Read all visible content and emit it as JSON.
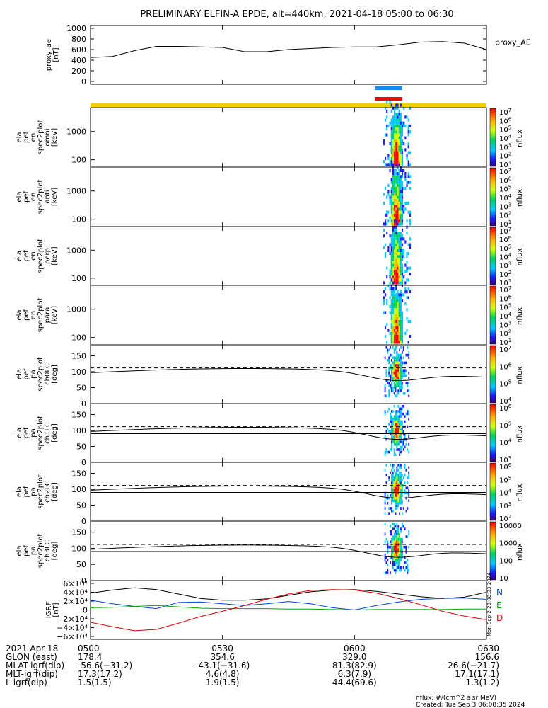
{
  "title": "PRELIMINARY ELFIN-A EPDE, alt=440km, 2021-04-18 05:00 to 06:30",
  "colors": {
    "blue_bar": "#1e88e5",
    "red_bar": "#d11",
    "yellow_bar": "#f5d000",
    "black": "#000",
    "bx": "#0044dd",
    "by": "#00aa00",
    "bz": "#dd0000"
  },
  "chart_data": [
    {
      "type": "line",
      "ylabel": "proxy_ae\n[nT]",
      "legend": "proxy_AE",
      "ylim": [
        0,
        1000
      ],
      "yticks": [
        "1000",
        "800",
        "600",
        "400",
        "200",
        "0"
      ],
      "x_minutes": [
        0,
        5,
        10,
        15,
        20,
        25,
        30,
        35,
        40,
        45,
        50,
        55,
        60,
        65,
        70,
        75,
        80,
        85,
        90
      ],
      "values": [
        450,
        470,
        580,
        660,
        660,
        650,
        640,
        560,
        560,
        600,
        620,
        640,
        650,
        650,
        690,
        740,
        750,
        720,
        600
      ]
    },
    {
      "type": "heatmap",
      "ylabel": "ela\npef\nen\nspec2plot\nomni\n[keV]",
      "yticks": [
        "1000",
        "100"
      ],
      "colorbar": [
        "10^7",
        "10^6",
        "10^5",
        "10^4",
        "10^3",
        "10^2",
        "10^1"
      ],
      "cblabel": "nflux"
    },
    {
      "type": "heatmap",
      "ylabel": "ela\npef\nen\nspec2plot\nanti\n[keV]",
      "yticks": [
        "1000",
        "100"
      ],
      "colorbar": [
        "10^7",
        "10^6",
        "10^5",
        "10^4",
        "10^3",
        "10^2",
        "10^1"
      ],
      "cblabel": "nflux"
    },
    {
      "type": "heatmap",
      "ylabel": "ela\npef\nen\nspec2plot\nperp\n[keV]",
      "yticks": [
        "1000",
        "100"
      ],
      "colorbar": [
        "10^7",
        "10^6",
        "10^5",
        "10^4",
        "10^3",
        "10^2",
        "10^1"
      ],
      "cblabel": "nflux"
    },
    {
      "type": "heatmap",
      "ylabel": "ela\npef\nen\nspec2plot\npara\n[keV]",
      "yticks": [
        "1000",
        "100"
      ],
      "colorbar": [
        "10^7",
        "10^6",
        "10^5",
        "10^4",
        "10^3",
        "10^2",
        "10^1"
      ],
      "cblabel": "nflux"
    },
    {
      "type": "heatmap",
      "ylabel": "ela\npef\npa\nspec2plot\nch0LC\n[deg]",
      "yticks": [
        "150",
        "100",
        "50",
        "0"
      ],
      "colorbar": [
        "10^7",
        "10^6",
        "10^5",
        "10^4"
      ],
      "cblabel": "nflux"
    },
    {
      "type": "heatmap",
      "ylabel": "ela\npef\npa\nspec2plot\nch1LC\n[deg]",
      "yticks": [
        "150",
        "100",
        "50",
        "0"
      ],
      "colorbar": [
        "10^6",
        "10^5",
        "10^4",
        "10^3"
      ],
      "cblabel": "nflux"
    },
    {
      "type": "heatmap",
      "ylabel": "ela\npef\npa\nspec2plot\nch2LC\n[deg]",
      "yticks": [
        "150",
        "100",
        "50",
        "0"
      ],
      "colorbar": [
        "10^6",
        "10^5",
        "10^4",
        "10^3",
        "10^2"
      ],
      "cblabel": "nflux"
    },
    {
      "type": "heatmap",
      "ylabel": "ela\npef\npa\nspec2plot\nch3LC\n[deg]",
      "yticks": [
        "150",
        "100",
        "50",
        "0"
      ],
      "colorbar": [
        "10000",
        "1000",
        "100",
        "10"
      ],
      "cblabel": "nflux"
    },
    {
      "type": "line",
      "ylabel": "IGRF\n[nT]",
      "yticks": [
        "6×10⁴",
        "4×10⁴",
        "2×10⁴",
        "0",
        "−2×10⁴",
        "−4×10⁴",
        "−6×10⁴"
      ],
      "ylim": [
        -60000,
        60000
      ],
      "legend": [
        "N",
        "E",
        "D"
      ],
      "side_text": "Mon Sep  2 23:08:33 2024",
      "x_minutes": [
        0,
        5,
        10,
        15,
        20,
        25,
        30,
        35,
        40,
        45,
        50,
        55,
        60,
        65,
        70,
        75,
        80,
        85,
        90
      ],
      "series": [
        {
          "name": "Total",
          "values": [
            38000,
            45000,
            50000,
            46000,
            36000,
            26000,
            22000,
            22000,
            25000,
            33000,
            41000,
            45000,
            46000,
            42000,
            36000,
            30000,
            26000,
            29000,
            40000
          ]
        },
        {
          "name": "N",
          "values": [
            22000,
            14000,
            8000,
            3000,
            17000,
            18000,
            14000,
            10000,
            14000,
            19000,
            14000,
            5000,
            0,
            10000,
            18000,
            24000,
            26000,
            27000,
            24000
          ]
        },
        {
          "name": "E",
          "values": [
            5000,
            6000,
            8000,
            10000,
            7000,
            4000,
            3000,
            3000,
            3000,
            2000,
            2000,
            1000,
            0,
            1000,
            1000,
            1000,
            1000,
            2000,
            2000
          ]
        },
        {
          "name": "D",
          "values": [
            -28000,
            -38000,
            -47000,
            -44000,
            -30000,
            -15000,
            -3000,
            10000,
            24000,
            36000,
            44000,
            46000,
            45000,
            38000,
            26000,
            12000,
            -3000,
            -14000,
            -22000
          ]
        }
      ]
    }
  ],
  "xaxis": {
    "rows": [
      {
        "label": "2021 Apr 18",
        "values": [
          "0500",
          "0530",
          "0600",
          "0630"
        ]
      },
      {
        "label": "GLON (east)",
        "values": [
          "178.4",
          "354.6",
          "329.0",
          "156.6"
        ]
      },
      {
        "label": "MLAT-igrf(dip)",
        "values": [
          "-56.6(−31.2)",
          "-43.1(−31.6)",
          "81.3(82.9)",
          "-26.6(−21.7)"
        ]
      },
      {
        "label": "MLT-igrf(dip)",
        "values": [
          "17.3(17.2)",
          "4.6(4.8)",
          "6.3(7.9)",
          "17.1(17.1)"
        ]
      },
      {
        "label": "L-igrf(dip)",
        "values": [
          "1.5(1.5)",
          "1.9(1.5)",
          "44.4(69.6)",
          "1.3(1.2)"
        ]
      }
    ]
  },
  "footer": {
    "line1": "nflux: #/(cm^2 s sr MeV)",
    "line2": "Created: Tue Sep  3 06:08:35 2024"
  }
}
